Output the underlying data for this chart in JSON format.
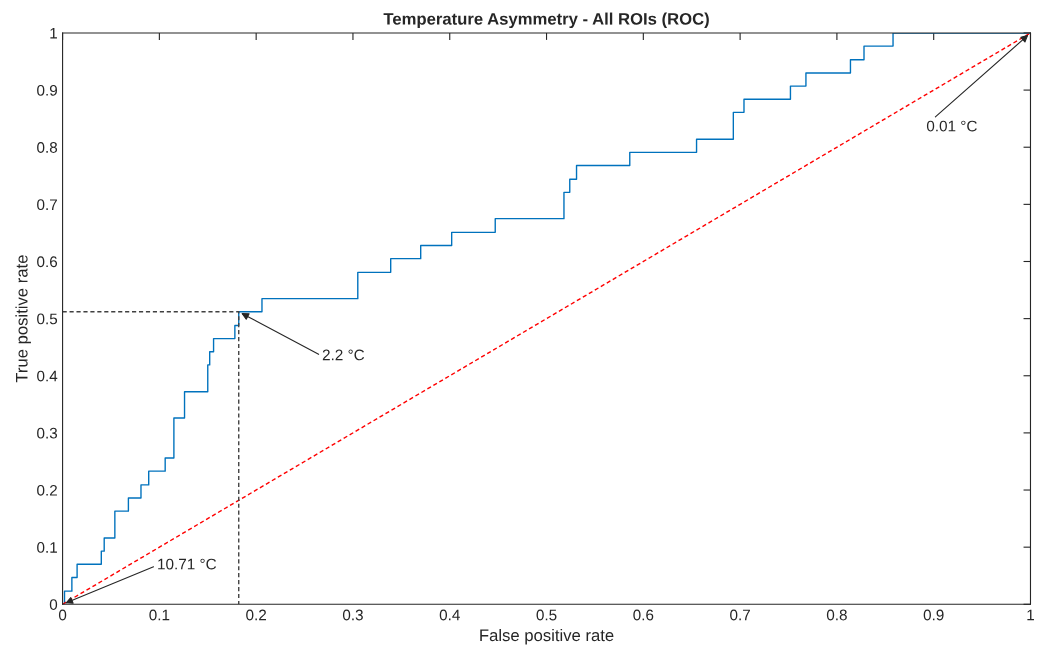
{
  "chart_data": {
    "type": "step",
    "title": "Temperature Asymmetry - All ROIs (ROC)",
    "xlabel": "False positive rate",
    "ylabel": "True positive rate",
    "xlim": [
      0,
      1
    ],
    "ylim": [
      0,
      1
    ],
    "xticks": [
      0,
      0.1,
      0.2,
      0.3,
      0.4,
      0.5,
      0.6,
      0.7,
      0.8,
      0.9,
      1
    ],
    "yticks": [
      0,
      0.1,
      0.2,
      0.3,
      0.4,
      0.5,
      0.6,
      0.7,
      0.8,
      0.9,
      1
    ],
    "grid": false,
    "legend": false,
    "marker": "none",
    "series": [
      {
        "color": "#0072bd",
        "line_style": "solid",
        "x": [
          0,
          0.002,
          0.0096,
          0.015,
          0.04,
          0.043,
          0.054,
          0.068,
          0.081,
          0.089,
          0.106,
          0.115,
          0.126,
          0.15,
          0.152,
          0.156,
          0.178,
          0.182,
          0.206,
          0.305,
          0.339,
          0.37,
          0.402,
          0.447,
          0.518,
          0.524,
          0.531,
          0.586,
          0.655,
          0.693,
          0.704,
          0.752,
          0.768,
          0.814,
          0.828,
          0.858,
          1
        ],
        "values": [
          0,
          0.023,
          0.047,
          0.07,
          0.093,
          0.116,
          0.163,
          0.186,
          0.209,
          0.233,
          0.256,
          0.326,
          0.372,
          0.419,
          0.442,
          0.465,
          0.488,
          0.512,
          0.535,
          0.581,
          0.605,
          0.628,
          0.651,
          0.675,
          0.721,
          0.744,
          0.768,
          0.791,
          0.814,
          0.861,
          0.884,
          0.907,
          0.93,
          0.953,
          0.977,
          1,
          1
        ]
      },
      {
        "type": "line",
        "color": "#ff0000",
        "line_style": "dashed",
        "x": [
          0,
          1
        ],
        "values": [
          0,
          1
        ]
      },
      {
        "type": "line",
        "color": "#404040",
        "line_style": "dashed",
        "x": [
          0,
          0.182,
          0.182
        ],
        "values": [
          0.512,
          0.512,
          0
        ]
      }
    ],
    "annotations": [
      {
        "text": "10.71 °C",
        "x": 0,
        "y": 0
      },
      {
        "text": "2.2 °C",
        "x": 0.182,
        "y": 0.512
      },
      {
        "text": "0.01 °C",
        "x": 1,
        "y": 1
      }
    ]
  }
}
